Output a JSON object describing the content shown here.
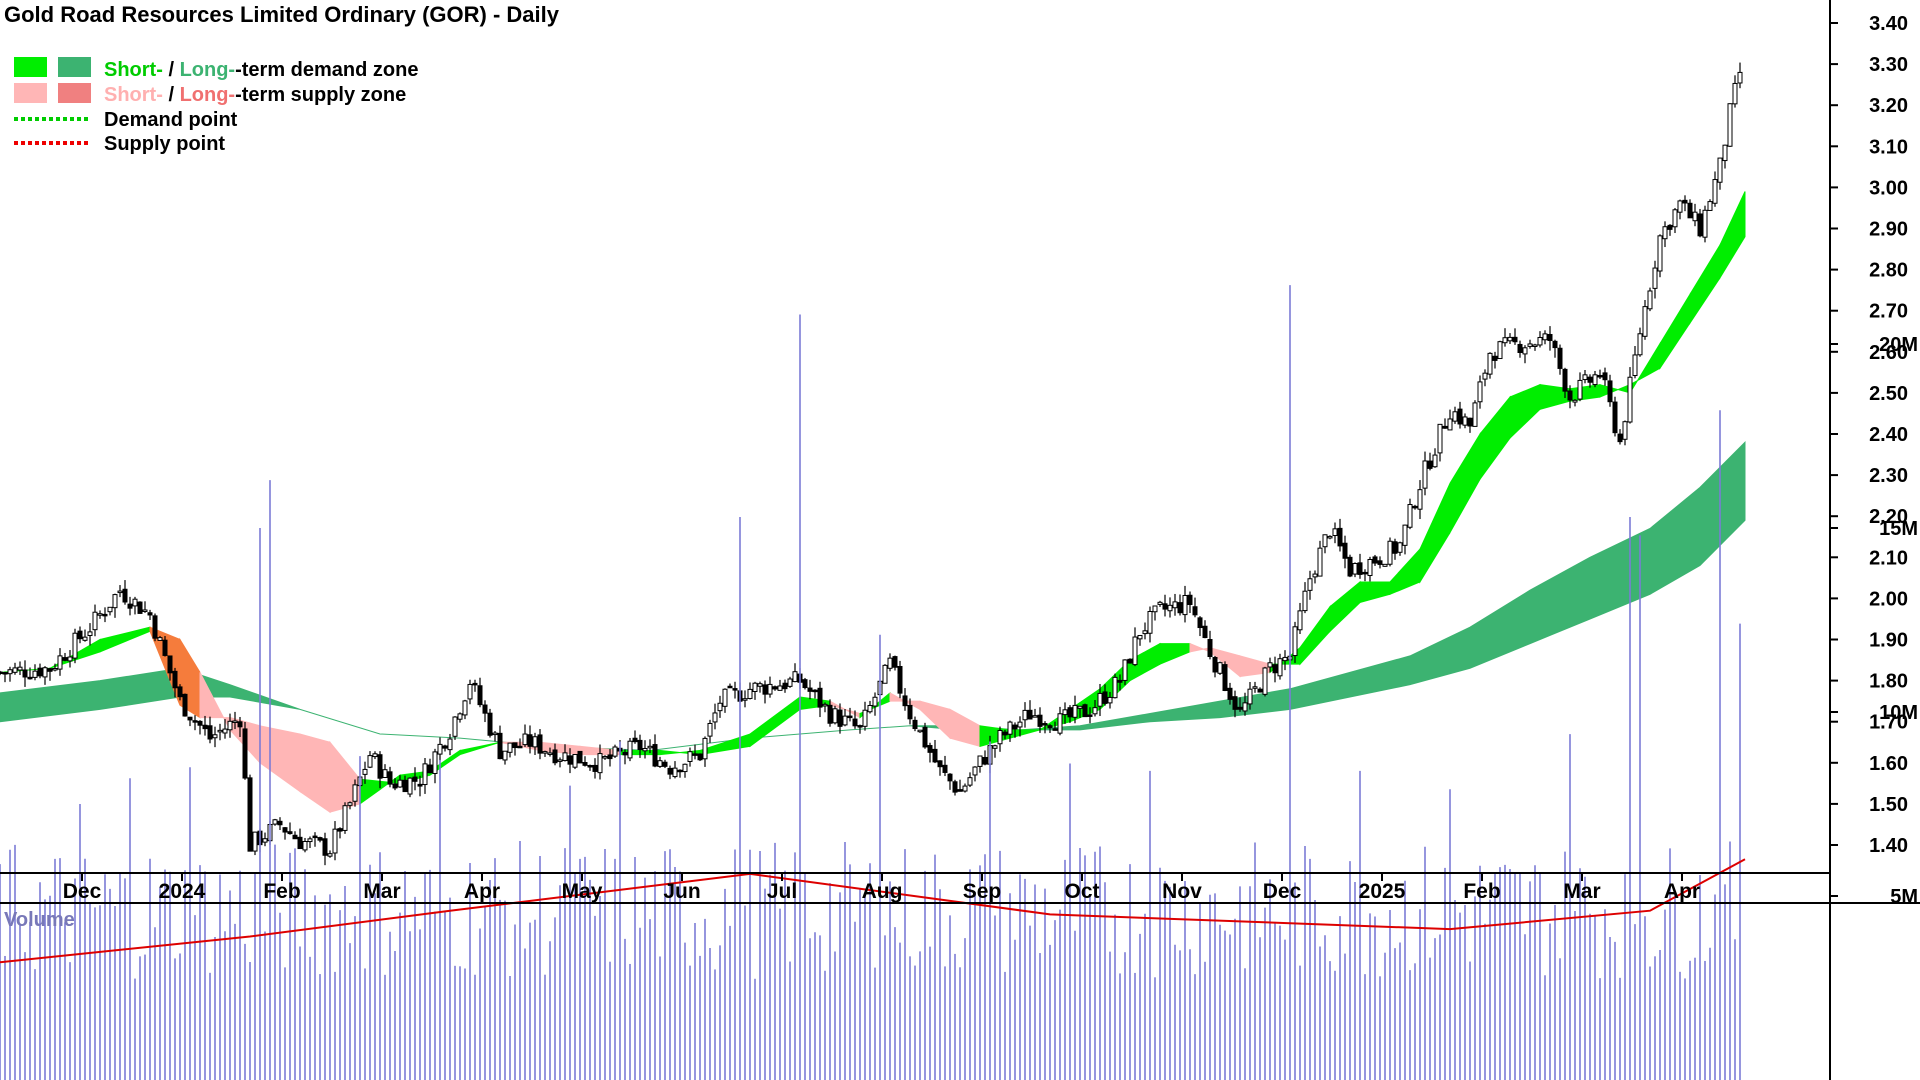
{
  "title": "Gold Road Resources Limited Ordinary (GOR) - Daily",
  "legend": {
    "demand_zone": {
      "short": "Short-",
      "slash": " / ",
      "long": "Long-",
      "rest": "-term demand zone"
    },
    "supply_zone": {
      "short": "Short-",
      "slash": " / ",
      "long": "Long-",
      "rest": "-term supply zone"
    },
    "demand_point": "Demand point",
    "supply_point": "Supply point"
  },
  "volume_label": "Volume",
  "colors": {
    "short_demand": "#00ee00",
    "long_demand": "#3cb371",
    "short_supply": "#ffb6b6",
    "long_supply": "#f57c3c",
    "demand_point": "#00cc00",
    "supply_point": "#ee0000",
    "volume_bar": "#7b7bd6",
    "volume_avg": "#dd0000"
  },
  "chart_data": [
    {
      "type": "candlestick",
      "title": "Gold Road Resources Limited Ordinary (GOR) - Daily",
      "x_tick_labels": [
        "Dec",
        "2024",
        "Feb",
        "Mar",
        "Apr",
        "May",
        "Jun",
        "Jul",
        "Aug",
        "Sep",
        "Oct",
        "Nov",
        "Dec",
        "2025",
        "Feb",
        "Mar",
        "Apr"
      ],
      "y_tick_labels": [
        "1.40",
        "1.50",
        "1.60",
        "1.70",
        "1.80",
        "1.90",
        "2.00",
        "2.10",
        "2.20",
        "2.30",
        "2.40",
        "2.50",
        "2.60",
        "2.70",
        "2.80",
        "2.90",
        "3.00",
        "3.10",
        "3.20",
        "3.30",
        "3.40"
      ],
      "ylim": [
        1.33,
        3.45
      ],
      "x_range_months": [
        0,
        17.45
      ],
      "close_path": [
        [
          0,
          1.82
        ],
        [
          0.5,
          1.83
        ],
        [
          0.9,
          1.93
        ],
        [
          1.2,
          2.02
        ],
        [
          1.5,
          1.96
        ],
        [
          1.8,
          1.75
        ],
        [
          2.1,
          1.66
        ],
        [
          2.4,
          1.71
        ],
        [
          2.5,
          1.4
        ],
        [
          2.8,
          1.45
        ],
        [
          3.0,
          1.41
        ],
        [
          3.3,
          1.39
        ],
        [
          3.5,
          1.5
        ],
        [
          3.7,
          1.62
        ],
        [
          3.9,
          1.55
        ],
        [
          4.2,
          1.56
        ],
        [
          4.5,
          1.68
        ],
        [
          4.7,
          1.8
        ],
        [
          5.0,
          1.63
        ],
        [
          5.3,
          1.65
        ],
        [
          5.6,
          1.62
        ],
        [
          6.0,
          1.6
        ],
        [
          6.4,
          1.64
        ],
        [
          6.7,
          1.59
        ],
        [
          7.0,
          1.62
        ],
        [
          7.2,
          1.75
        ],
        [
          7.5,
          1.78
        ],
        [
          8.0,
          1.8
        ],
        [
          8.3,
          1.72
        ],
        [
          8.6,
          1.68
        ],
        [
          8.9,
          1.84
        ],
        [
          9.1,
          1.72
        ],
        [
          9.4,
          1.58
        ],
        [
          9.6,
          1.53
        ],
        [
          9.8,
          1.6
        ],
        [
          10.0,
          1.66
        ],
        [
          10.3,
          1.72
        ],
        [
          10.6,
          1.7
        ],
        [
          10.9,
          1.73
        ],
        [
          11.2,
          1.8
        ],
        [
          11.4,
          1.92
        ],
        [
          11.6,
          1.97
        ],
        [
          11.9,
          1.99
        ],
        [
          12.1,
          1.87
        ],
        [
          12.4,
          1.72
        ],
        [
          12.7,
          1.83
        ],
        [
          12.9,
          1.86
        ],
        [
          13.1,
          2.05
        ],
        [
          13.3,
          2.17
        ],
        [
          13.5,
          2.07
        ],
        [
          13.8,
          2.1
        ],
        [
          14.0,
          2.13
        ],
        [
          14.2,
          2.28
        ],
        [
          14.5,
          2.46
        ],
        [
          14.7,
          2.42
        ],
        [
          14.9,
          2.6
        ],
        [
          15.2,
          2.62
        ],
        [
          15.5,
          2.63
        ],
        [
          15.7,
          2.49
        ],
        [
          16.0,
          2.55
        ],
        [
          16.2,
          2.38
        ],
        [
          16.4,
          2.65
        ],
        [
          16.6,
          2.88
        ],
        [
          16.8,
          2.96
        ],
        [
          17.0,
          2.9
        ],
        [
          17.2,
          3.05
        ],
        [
          17.3,
          3.18
        ],
        [
          17.45,
          3.33
        ]
      ],
      "short_term_zone": [
        [
          0,
          1.82,
          1.82
        ],
        [
          0.5,
          1.83,
          1.83
        ],
        [
          1.0,
          1.9,
          1.87
        ],
        [
          1.5,
          1.93,
          1.92
        ],
        [
          1.8,
          1.9,
          1.74
        ],
        [
          2.0,
          1.82,
          1.71
        ],
        [
          2.3,
          1.68,
          1.71
        ],
        [
          2.6,
          1.6,
          1.69
        ],
        [
          3.0,
          1.53,
          1.67
        ],
        [
          3.3,
          1.48,
          1.65
        ],
        [
          3.6,
          1.5,
          1.56
        ],
        [
          4.0,
          1.57,
          1.55
        ],
        [
          4.3,
          1.58,
          1.57
        ],
        [
          4.6,
          1.63,
          1.62
        ],
        [
          5.0,
          1.65,
          1.65
        ],
        [
          5.4,
          1.63,
          1.65
        ],
        [
          5.8,
          1.62,
          1.64
        ],
        [
          6.2,
          1.62,
          1.63
        ],
        [
          6.6,
          1.62,
          1.63
        ],
        [
          7.0,
          1.63,
          1.62
        ],
        [
          7.5,
          1.67,
          1.64
        ],
        [
          8.0,
          1.76,
          1.73
        ],
        [
          8.3,
          1.75,
          1.74
        ],
        [
          8.6,
          1.71,
          1.72
        ],
        [
          8.9,
          1.77,
          1.75
        ],
        [
          9.2,
          1.73,
          1.75
        ],
        [
          9.5,
          1.66,
          1.73
        ],
        [
          9.8,
          1.64,
          1.69
        ],
        [
          10.1,
          1.66,
          1.68
        ],
        [
          10.4,
          1.68,
          1.68
        ],
        [
          10.7,
          1.73,
          1.7
        ],
        [
          11.0,
          1.78,
          1.73
        ],
        [
          11.3,
          1.85,
          1.8
        ],
        [
          11.6,
          1.89,
          1.84
        ],
        [
          11.9,
          1.89,
          1.87
        ],
        [
          12.1,
          1.87,
          1.88
        ],
        [
          12.4,
          1.81,
          1.86
        ],
        [
          12.7,
          1.82,
          1.84
        ],
        [
          13.0,
          1.88,
          1.84
        ],
        [
          13.3,
          1.98,
          1.92
        ],
        [
          13.6,
          2.04,
          1.99
        ],
        [
          13.9,
          2.04,
          2.01
        ],
        [
          14.2,
          2.12,
          2.04
        ],
        [
          14.5,
          2.28,
          2.16
        ],
        [
          14.8,
          2.4,
          2.29
        ],
        [
          15.1,
          2.49,
          2.39
        ],
        [
          15.4,
          2.52,
          2.46
        ],
        [
          15.7,
          2.51,
          2.48
        ],
        [
          16.0,
          2.52,
          2.49
        ],
        [
          16.3,
          2.5,
          2.52
        ],
        [
          16.6,
          2.62,
          2.56
        ],
        [
          16.9,
          2.74,
          2.67
        ],
        [
          17.2,
          2.86,
          2.78
        ],
        [
          17.45,
          2.99,
          2.88
        ]
      ],
      "long_term_zone": [
        [
          0,
          1.77,
          1.7
        ],
        [
          1.0,
          1.8,
          1.73
        ],
        [
          1.8,
          1.83,
          1.76
        ],
        [
          2.3,
          1.79,
          1.76
        ],
        [
          3.0,
          1.73,
          1.73
        ],
        [
          3.8,
          1.67,
          1.67
        ],
        [
          4.6,
          1.66,
          1.66
        ],
        [
          5.5,
          1.64,
          1.64
        ],
        [
          6.5,
          1.63,
          1.63
        ],
        [
          7.5,
          1.66,
          1.66
        ],
        [
          8.5,
          1.68,
          1.68
        ],
        [
          9.1,
          1.69,
          1.69
        ],
        [
          9.6,
          1.69,
          1.68
        ],
        [
          10.2,
          1.68,
          1.68
        ],
        [
          10.8,
          1.69,
          1.68
        ],
        [
          11.5,
          1.72,
          1.7
        ],
        [
          12.2,
          1.75,
          1.71
        ],
        [
          12.9,
          1.78,
          1.73
        ],
        [
          13.5,
          1.82,
          1.76
        ],
        [
          14.1,
          1.86,
          1.79
        ],
        [
          14.7,
          1.93,
          1.83
        ],
        [
          15.3,
          2.02,
          1.89
        ],
        [
          15.9,
          2.1,
          1.95
        ],
        [
          16.5,
          2.17,
          2.01
        ],
        [
          17.0,
          2.27,
          2.08
        ],
        [
          17.45,
          2.38,
          2.19
        ]
      ]
    },
    {
      "type": "bar",
      "title": "Volume",
      "y_tick_labels": [
        "5M",
        "10M",
        "15M",
        "20M"
      ],
      "ylim": [
        0,
        22
      ],
      "unit": "millions",
      "typical_level": 5,
      "spikes": [
        [
          0.8,
          7.5
        ],
        [
          1.3,
          8.2
        ],
        [
          1.9,
          8.5
        ],
        [
          2.6,
          15
        ],
        [
          2.7,
          16.3
        ],
        [
          3.6,
          8.8
        ],
        [
          4.4,
          8.7
        ],
        [
          5.7,
          8.0
        ],
        [
          6.2,
          9.2
        ],
        [
          7.4,
          15.3
        ],
        [
          8.0,
          20.8
        ],
        [
          8.8,
          12.1
        ],
        [
          9.9,
          9.2
        ],
        [
          10.7,
          8.6
        ],
        [
          11.5,
          8.4
        ],
        [
          12.9,
          21.6
        ],
        [
          13.6,
          8.4
        ],
        [
          14.5,
          7.9
        ],
        [
          15.7,
          9.4
        ],
        [
          16.3,
          15.3
        ],
        [
          16.4,
          14.8
        ],
        [
          17.2,
          18.2
        ],
        [
          17.4,
          12.4
        ]
      ],
      "average": [
        [
          0,
          3.2
        ],
        [
          2.5,
          3.9
        ],
        [
          4.5,
          4.6
        ],
        [
          7.5,
          5.6
        ],
        [
          10.5,
          4.5
        ],
        [
          14.5,
          4.1
        ],
        [
          16.5,
          4.6
        ],
        [
          17.45,
          6.0
        ]
      ]
    }
  ]
}
